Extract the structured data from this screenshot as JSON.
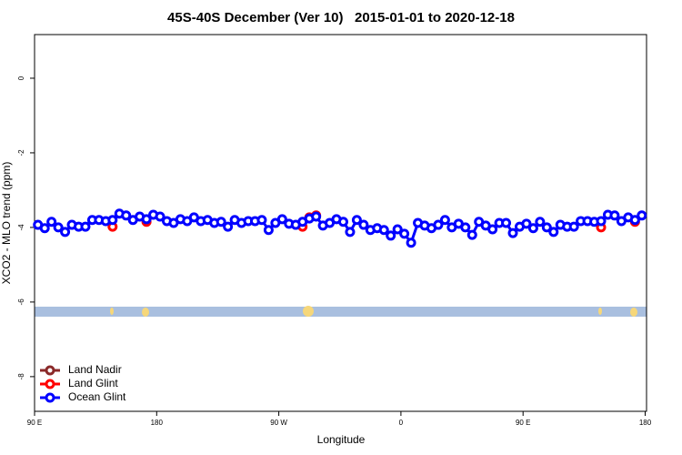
{
  "chart_data": {
    "type": "line",
    "title": "45S-40S December (Ver 10)   2015-01-01 to 2020-12-18",
    "xlabel": "Longitude",
    "ylabel": "XCO2 - MLO trend (ppm)",
    "xlim": [
      90,
      541
    ],
    "ylim": [
      -8.93,
      1.17
    ],
    "xticks": [
      {
        "value": 90,
        "label": "90 E"
      },
      180,
      {
        "value": 270,
        "label": "90 W"
      },
      {
        "value": 360,
        "label": "0"
      },
      {
        "value": 450,
        "label": "90 E"
      },
      {
        "value": 540,
        "label": "180"
      }
    ],
    "yticks": [
      0,
      -2,
      -4,
      -6,
      -8
    ],
    "legend": "bottom-left",
    "x": [
      92.5,
      97.5,
      102.5,
      107.5,
      112.5,
      117.5,
      122.5,
      127.5,
      132.5,
      137.5,
      142.5,
      147.5,
      152.5,
      157.5,
      162.5,
      167.5,
      172.5,
      177.5,
      182.5,
      187.5,
      192.5,
      197.5,
      202.5,
      207.5,
      212.5,
      217.5,
      222.5,
      227.5,
      232.5,
      237.5,
      242.5,
      247.5,
      252.5,
      257.5,
      262.5,
      267.5,
      272.5,
      277.5,
      282.5,
      287.5,
      292.5,
      297.5,
      302.5,
      307.5,
      312.5,
      317.5,
      322.5,
      327.5,
      332.5,
      337.5,
      342.5,
      347.5,
      352.5,
      357.5,
      362.5,
      367.5,
      372.5,
      377.5,
      382.5,
      387.5,
      392.5,
      397.5,
      402.5,
      407.5,
      412.5,
      417.5,
      422.5,
      427.5,
      432.5,
      437.5,
      442.5,
      447.5,
      452.5,
      457.5,
      462.5,
      467.5,
      472.5,
      477.5,
      482.5,
      487.5,
      492.5,
      497.5,
      502.5,
      507.5,
      512.5,
      517.5,
      522.5,
      527.5,
      532.5,
      537.5
    ],
    "series": [
      {
        "name": "Land Nadir",
        "color": "#8b2a2a",
        "values": [
          null,
          null,
          null,
          null,
          null,
          null,
          null,
          null,
          null,
          null,
          null,
          null,
          null,
          null,
          null,
          null,
          null,
          null,
          null,
          null,
          null,
          null,
          null,
          null,
          null,
          null,
          null,
          null,
          null,
          null,
          null,
          null,
          null,
          null,
          null,
          null,
          null,
          null,
          null,
          null,
          null,
          null,
          null,
          null,
          null,
          null,
          null,
          null,
          null,
          null,
          null,
          null,
          null,
          null,
          null,
          null,
          null,
          null,
          null,
          null,
          null,
          null,
          null,
          null,
          null,
          null,
          null,
          null,
          null,
          null,
          null,
          null,
          null,
          null,
          null,
          null,
          null,
          null,
          null,
          null,
          null,
          null,
          null,
          null,
          null,
          null,
          null,
          null,
          null,
          null
        ]
      },
      {
        "name": "Land Glint",
        "color": "#ff0000",
        "values": [
          null,
          null,
          null,
          null,
          null,
          null,
          null,
          null,
          null,
          null,
          null,
          -3.98,
          null,
          null,
          null,
          null,
          -3.85,
          null,
          null,
          null,
          null,
          null,
          null,
          null,
          null,
          null,
          null,
          null,
          null,
          null,
          null,
          null,
          null,
          null,
          null,
          null,
          null,
          null,
          null,
          -3.98,
          -3.73,
          -3.68,
          null,
          null,
          null,
          null,
          null,
          null,
          null,
          null,
          null,
          null,
          null,
          null,
          null,
          null,
          null,
          null,
          null,
          null,
          null,
          null,
          null,
          null,
          null,
          null,
          null,
          null,
          null,
          null,
          null,
          null,
          null,
          null,
          null,
          null,
          null,
          null,
          null,
          null,
          null,
          null,
          null,
          -4.0,
          null,
          null,
          null,
          null,
          -3.85,
          null
        ]
      },
      {
        "name": "Ocean Glint",
        "color": "#0000ff",
        "values": [
          -3.93,
          -4.02,
          -3.85,
          -4.0,
          -4.12,
          -3.93,
          -3.98,
          -3.98,
          -3.8,
          -3.8,
          -3.83,
          -3.8,
          -3.63,
          -3.68,
          -3.8,
          -3.71,
          -3.78,
          -3.66,
          -3.71,
          -3.83,
          -3.88,
          -3.78,
          -3.83,
          -3.73,
          -3.83,
          -3.8,
          -3.88,
          -3.85,
          -3.98,
          -3.8,
          -3.88,
          -3.83,
          -3.83,
          -3.8,
          -4.07,
          -3.88,
          -3.78,
          -3.9,
          -3.93,
          -3.85,
          -3.76,
          -3.71,
          -3.95,
          -3.88,
          -3.78,
          -3.85,
          -4.12,
          -3.8,
          -3.93,
          -4.07,
          -4.02,
          -4.07,
          -4.22,
          -4.05,
          -4.17,
          -4.41,
          -3.88,
          -3.95,
          -4.02,
          -3.93,
          -3.8,
          -4.0,
          -3.9,
          -4.0,
          -4.2,
          -3.85,
          -3.95,
          -4.05,
          -3.88,
          -3.88,
          -4.15,
          -3.98,
          -3.9,
          -4.02,
          -3.85,
          -4.0,
          -4.12,
          -3.93,
          -3.98,
          -3.98,
          -3.83,
          -3.83,
          -3.85,
          -3.83,
          -3.66,
          -3.68,
          -3.83,
          -3.73,
          -3.8,
          -3.68
        ]
      }
    ]
  }
}
